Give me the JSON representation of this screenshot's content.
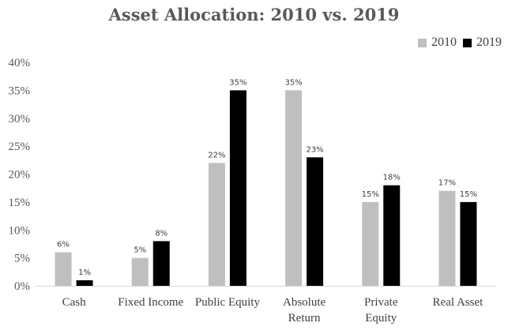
{
  "chart_data": {
    "type": "bar",
    "title": "Asset Allocation: 2010 vs. 2019",
    "categories": [
      [
        "Cash"
      ],
      [
        "Fixed Income"
      ],
      [
        "Public Equity"
      ],
      [
        "Absolute",
        "Return"
      ],
      [
        "Private",
        "Equity"
      ],
      [
        "Real Asset"
      ]
    ],
    "series": [
      {
        "name": "2010",
        "color": "#bfbfbf",
        "values": [
          6,
          5,
          22,
          35,
          15,
          17
        ],
        "labels": [
          "6%",
          "5%",
          "22%",
          "35%",
          "15%",
          "17%"
        ]
      },
      {
        "name": "2019",
        "color": "#000000",
        "values": [
          1,
          8,
          35,
          23,
          18,
          15
        ],
        "labels": [
          "1%",
          "8%",
          "35%",
          "23%",
          "18%",
          "15%"
        ]
      }
    ],
    "ylim": [
      0,
      40
    ],
    "yticks": [
      "0%",
      "5%",
      "10%",
      "15%",
      "20%",
      "25%",
      "30%",
      "35%",
      "40%"
    ],
    "legend_position": "top-right",
    "grid": false
  }
}
